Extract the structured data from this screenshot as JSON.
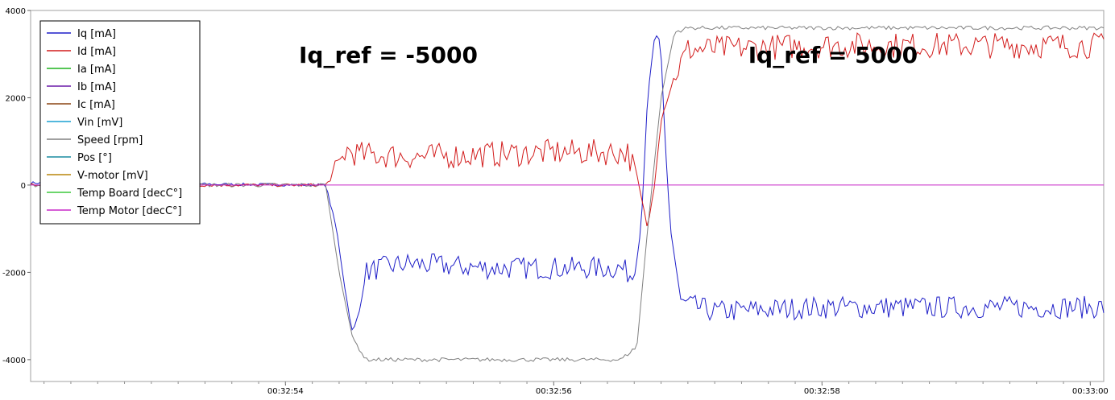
{
  "chart_data": {
    "type": "line",
    "title": "",
    "xlabel": "",
    "ylabel": "",
    "xlim": [
      "00:32:52.10",
      "00:33:00.10"
    ],
    "ylim": [
      -4500,
      4000
    ],
    "y_ticks": [
      -4000,
      -2000,
      0,
      2000,
      4000
    ],
    "y_tick_labels": [
      "-4000",
      "-2000",
      "0",
      "2000",
      "4000"
    ],
    "x_ticks": [
      "00:32:54",
      "00:32:56",
      "00:32:58",
      "00:33:00"
    ],
    "grid": true,
    "legend_position": "top-left",
    "legend": [
      {
        "label": "Iq [mA]",
        "color": "#1e1ec8"
      },
      {
        "label": "Id [mA]",
        "color": "#d21c1c"
      },
      {
        "label": "Ia [mA]",
        "color": "#1eb41e"
      },
      {
        "label": "Ib [mA]",
        "color": "#6a1aa8"
      },
      {
        "label": "Ic [mA]",
        "color": "#8b4513"
      },
      {
        "label": "Vin [mV]",
        "color": "#1aa0d2"
      },
      {
        "label": "Speed [rpm]",
        "color": "#808080"
      },
      {
        "label": "Pos [°]",
        "color": "#1a8ca0"
      },
      {
        "label": "V-motor [mV]",
        "color": "#b8860b"
      },
      {
        "label": "Temp Board [decC°]",
        "color": "#3cc83c"
      },
      {
        "label": "Temp Motor [decC°]",
        "color": "#c828c8"
      }
    ],
    "annotations": [
      {
        "text": "Iq_ref = -5000",
        "x": "00:32:54.10",
        "y": 2800
      },
      {
        "text": "Iq_ref = 5000",
        "x": "00:32:57.45",
        "y": 2800
      }
    ],
    "series": [
      {
        "name": "Iq [mA]",
        "color": "#1e1ec8",
        "x": [
          "00:32:52.10",
          "00:32:54.30",
          "00:32:54.38",
          "00:32:54.45",
          "00:32:54.50",
          "00:32:54.55",
          "00:32:54.60",
          "00:32:54.70",
          "00:32:54.90",
          "00:32:55.50",
          "00:32:56.00",
          "00:32:56.50",
          "00:32:56.60",
          "00:32:56.65",
          "00:32:56.70",
          "00:32:56.75",
          "00:32:56.80",
          "00:32:56.83",
          "00:32:56.87",
          "00:32:56.95",
          "00:32:57.20",
          "00:32:58.00",
          "00:32:59.00",
          "00:33:00.10"
        ],
        "y": [
          50,
          0,
          -1000,
          -2500,
          -3400,
          -2900,
          -2000,
          -1900,
          -1800,
          -1900,
          -1900,
          -1900,
          -2100,
          -1000,
          2000,
          3350,
          3000,
          1000,
          -1000,
          -2700,
          -2900,
          -2800,
          -2800,
          -2800
        ]
      },
      {
        "name": "Id [mA]",
        "color": "#d21c1c",
        "x": [
          "00:32:52.10",
          "00:32:54.30",
          "00:32:54.38",
          "00:32:54.45",
          "00:32:54.55",
          "00:32:55.00",
          "00:32:55.50",
          "00:32:56.00",
          "00:32:56.55",
          "00:32:56.62",
          "00:32:56.70",
          "00:32:56.75",
          "00:32:56.80",
          "00:32:56.90",
          "00:32:57.00",
          "00:32:58.00",
          "00:32:59.00",
          "00:33:00.10"
        ],
        "y": [
          0,
          0,
          300,
          800,
          700,
          650,
          700,
          750,
          750,
          200,
          -1000,
          0,
          1500,
          2500,
          3100,
          3200,
          3200,
          3200
        ]
      },
      {
        "name": "Speed [rpm]",
        "color": "#808080",
        "x": [
          "00:32:52.10",
          "00:32:54.30",
          "00:32:54.40",
          "00:32:54.50",
          "00:32:54.60",
          "00:32:54.70",
          "00:32:56.50",
          "00:32:56.62",
          "00:32:56.70",
          "00:32:56.80",
          "00:32:56.90",
          "00:32:57.00",
          "00:33:00.10"
        ],
        "y": [
          0,
          0,
          -2000,
          -3500,
          -4000,
          -4000,
          -4000,
          -3700,
          -1000,
          2000,
          3500,
          3600,
          3600
        ]
      },
      {
        "name": "Temp Motor [decC°]",
        "color": "#c828c8",
        "x": [
          "00:32:52.10",
          "00:33:00.10"
        ],
        "y": [
          0,
          0
        ]
      }
    ]
  }
}
